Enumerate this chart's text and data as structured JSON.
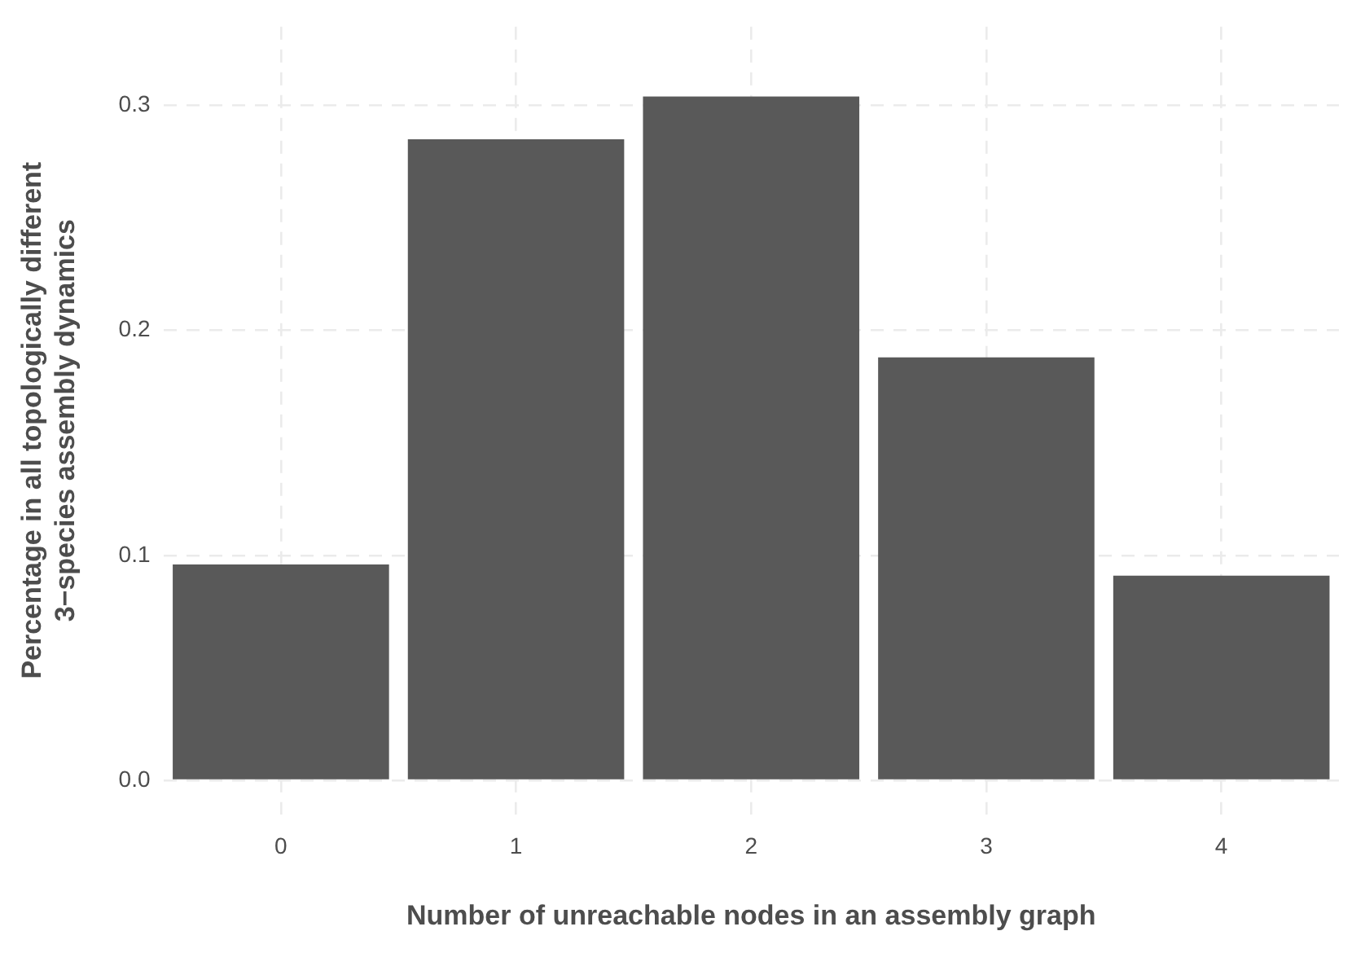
{
  "chart_data": {
    "type": "bar",
    "xlabel": "Number of unreachable nodes in an assembly graph",
    "ylabel": "Percentage in all topologically different\n3−species assembly dynamics",
    "categories": [
      "0",
      "1",
      "2",
      "3",
      "4"
    ],
    "values": [
      0.096,
      0.285,
      0.304,
      0.188,
      0.091
    ],
    "color": "#595959",
    "ylim": [
      -0.015,
      0.335
    ],
    "yticks": [
      {
        "value": 0,
        "label": "0.0"
      },
      0.1,
      0.2,
      0.3
    ],
    "grid": true,
    "legend": false
  }
}
